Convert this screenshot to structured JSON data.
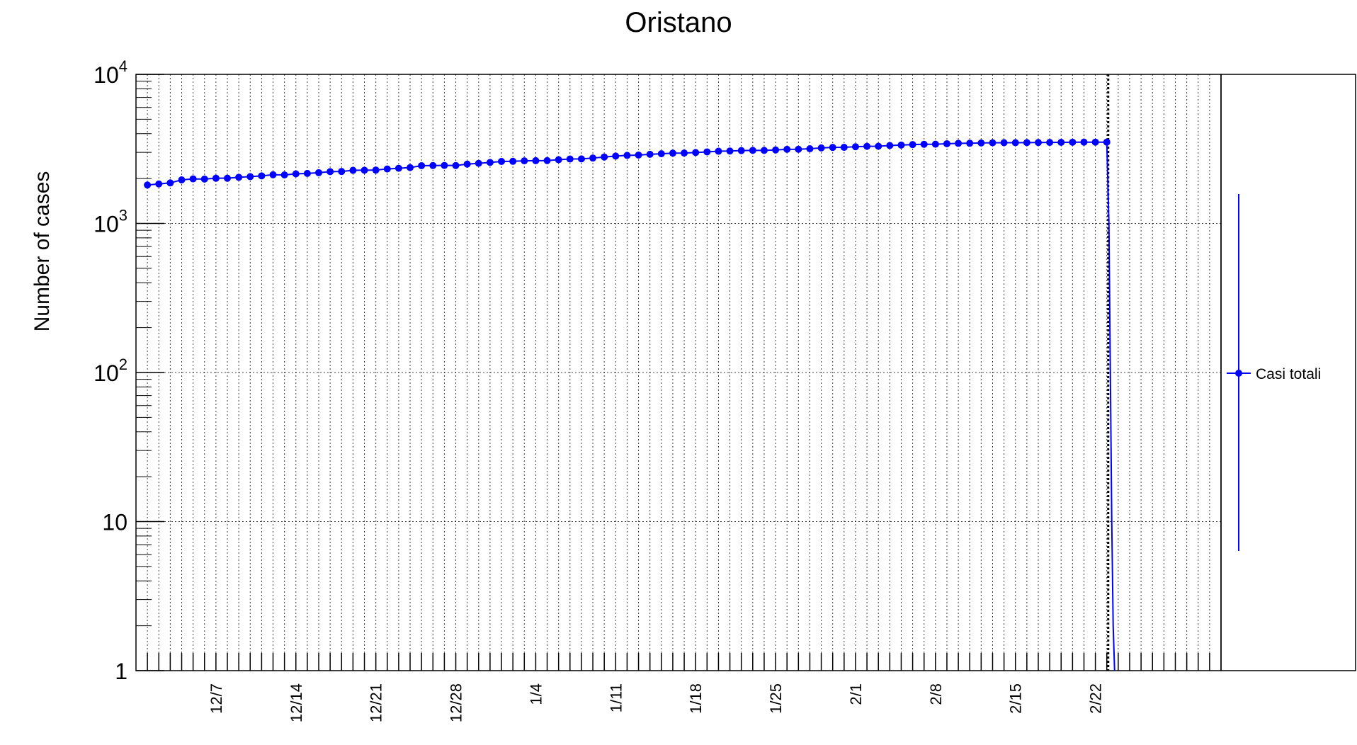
{
  "chart_data": {
    "type": "line",
    "title": "Oristano",
    "xlabel": "",
    "ylabel": "Number of cases",
    "y_scale": "log",
    "ylim": [
      1,
      10000
    ],
    "x_start": "2020-12-01",
    "xlim": [
      "2020-11-30",
      "2021-03-05"
    ],
    "grid": true,
    "x_tick_labels": [
      "12/7",
      "12/14",
      "12/21",
      "12/28",
      "1/4",
      "1/11",
      "1/18",
      "1/25",
      "2/1",
      "2/8",
      "2/15",
      "2/22"
    ],
    "y_tick_labels": [
      {
        "value": 1,
        "base": "1",
        "exp": ""
      },
      {
        "value": 10,
        "base": "10",
        "exp": ""
      },
      {
        "value": 100,
        "base": "10",
        "exp": "2"
      },
      {
        "value": 1000,
        "base": "10",
        "exp": "3"
      },
      {
        "value": 10000,
        "base": "10",
        "exp": "4"
      }
    ],
    "vertical_marker_date": "2021-02-23",
    "legend_position": "right",
    "legend_color": "#0000ff",
    "series": [
      {
        "name": "Casi totali",
        "color": "#0000ff",
        "values": [
          1810,
          1840,
          1870,
          1960,
          1990,
          1985,
          2010,
          2010,
          2040,
          2060,
          2085,
          2120,
          2115,
          2150,
          2165,
          2190,
          2225,
          2230,
          2270,
          2275,
          2280,
          2320,
          2345,
          2370,
          2440,
          2445,
          2450,
          2445,
          2500,
          2530,
          2565,
          2605,
          2610,
          2630,
          2635,
          2640,
          2675,
          2705,
          2710,
          2745,
          2790,
          2830,
          2860,
          2875,
          2910,
          2935,
          2960,
          2965,
          2990,
          3020,
          3050,
          3060,
          3080,
          3090,
          3090,
          3110,
          3140,
          3145,
          3170,
          3210,
          3235,
          3240,
          3270,
          3290,
          3295,
          3330,
          3355,
          3380,
          3395,
          3400,
          3425,
          3445,
          3450,
          3465,
          3475,
          3480,
          3480,
          3485,
          3490,
          3495,
          3500,
          3505,
          3510,
          3510,
          3510
        ]
      }
    ]
  }
}
